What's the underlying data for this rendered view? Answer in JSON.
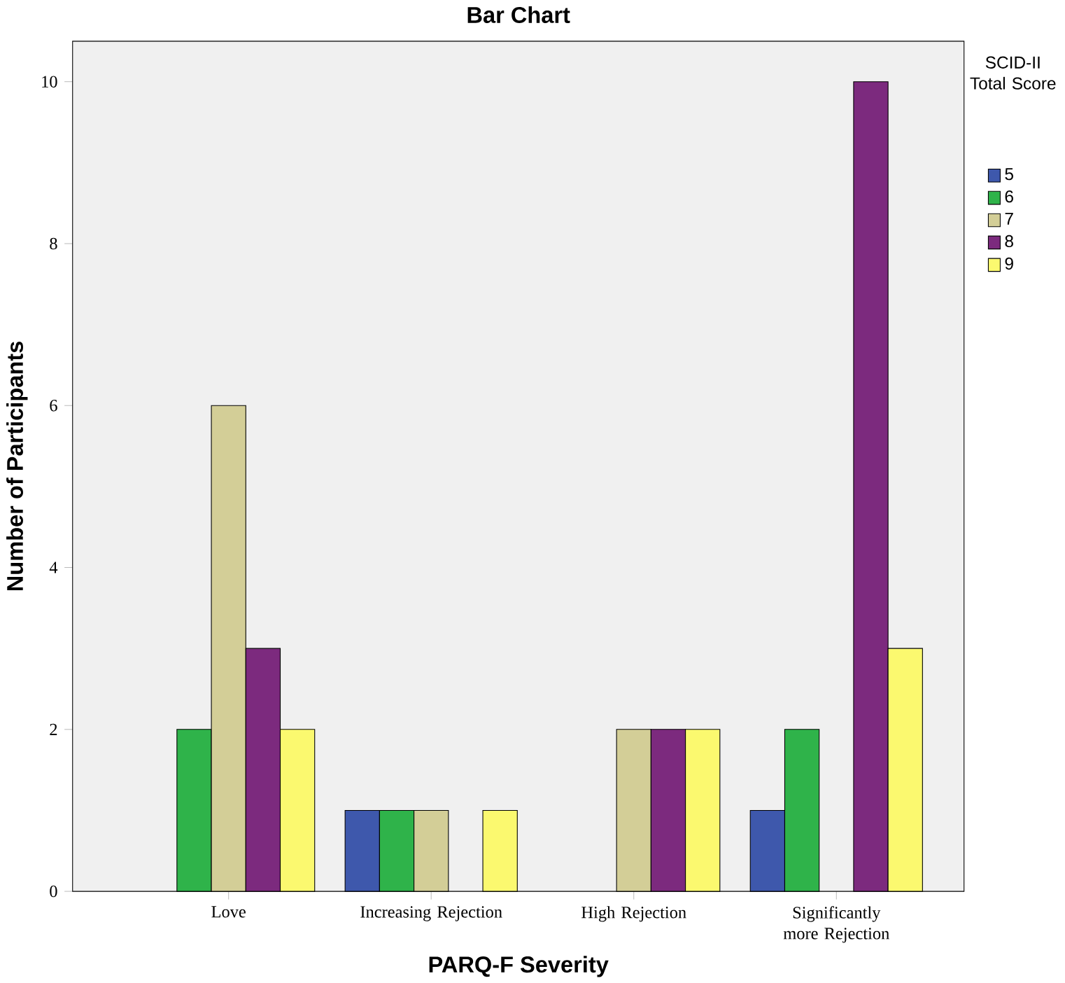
{
  "chart_data": {
    "type": "bar",
    "title": "Bar Chart",
    "xlabel": "PARQ-F Severity",
    "ylabel": "Number of Participants",
    "legend_title": "SCID-II Total Score",
    "categories": [
      "Love",
      "Increasing Rejection",
      "High Rejection",
      "Significantly more Rejection"
    ],
    "series": [
      {
        "name": "5",
        "color": "#3e58ac",
        "values": [
          null,
          1,
          null,
          1
        ]
      },
      {
        "name": "6",
        "color": "#2fb34a",
        "values": [
          2,
          1,
          null,
          2
        ]
      },
      {
        "name": "7",
        "color": "#d3ce97",
        "values": [
          6,
          1,
          2,
          null
        ]
      },
      {
        "name": "8",
        "color": "#7c2a7e",
        "values": [
          3,
          null,
          2,
          10
        ]
      },
      {
        "name": "9",
        "color": "#fbf96f",
        "values": [
          2,
          1,
          2,
          3
        ]
      }
    ],
    "ylim": [
      0,
      10.5
    ],
    "yticks": [
      0,
      2,
      4,
      6,
      8,
      10
    ],
    "grid": false,
    "legend": "right"
  }
}
